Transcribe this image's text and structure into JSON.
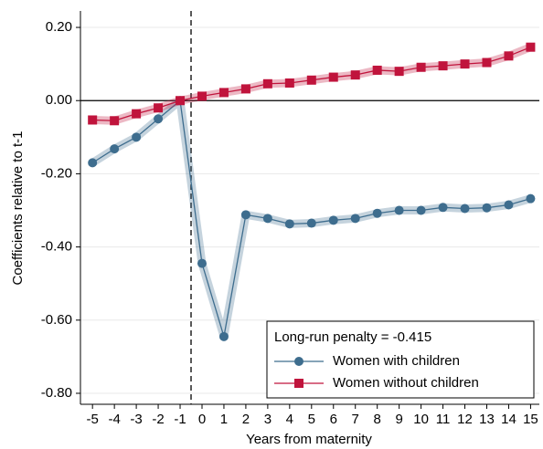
{
  "chart_data": {
    "type": "line",
    "x_label": "Years from maternity",
    "y_label": "Coefficients relative to t-1",
    "x": [
      -5,
      -4,
      -3,
      -2,
      -1,
      0,
      1,
      2,
      3,
      4,
      5,
      6,
      7,
      8,
      9,
      10,
      11,
      12,
      13,
      14,
      15
    ],
    "series": [
      {
        "name": "Women with children",
        "color": "#3e6d8e",
        "marker": "circle",
        "values": [
          -0.17,
          -0.132,
          -0.1,
          -0.05,
          0,
          -0.445,
          -0.645,
          -0.312,
          -0.322,
          -0.337,
          -0.335,
          -0.327,
          -0.322,
          -0.308,
          -0.3,
          -0.3,
          -0.292,
          -0.295,
          -0.293,
          -0.285,
          -0.268
        ]
      },
      {
        "name": "Women without children",
        "color": "#c0143c",
        "marker": "square",
        "values": [
          -0.053,
          -0.055,
          -0.036,
          -0.02,
          0,
          0.012,
          0.022,
          0.032,
          0.046,
          0.048,
          0.056,
          0.064,
          0.07,
          0.083,
          0.08,
          0.091,
          0.095,
          0.1,
          0.104,
          0.122,
          0.146
        ]
      }
    ],
    "xlim": [
      -5.55,
      15.4
    ],
    "ylim": [
      -0.83,
      0.245
    ],
    "xticks": [
      -5,
      -4,
      -3,
      -2,
      -1,
      0,
      1,
      2,
      3,
      4,
      5,
      6,
      7,
      8,
      9,
      10,
      11,
      12,
      13,
      14,
      15
    ],
    "yticks": [
      {
        "value": 0.2,
        "label": "0.20"
      },
      {
        "value": 0,
        "label": "0.00"
      },
      {
        "value": -0.2,
        "label": "-0.20"
      },
      {
        "value": -0.4,
        "label": "-0.40"
      },
      {
        "value": -0.6,
        "label": "-0.60"
      },
      {
        "value": -0.8,
        "label": "-0.80"
      }
    ],
    "grid": true,
    "vline": -0.5,
    "hline": 0,
    "legend_title": "Long-run penalty = -0.415",
    "legend_position": "lower right"
  }
}
